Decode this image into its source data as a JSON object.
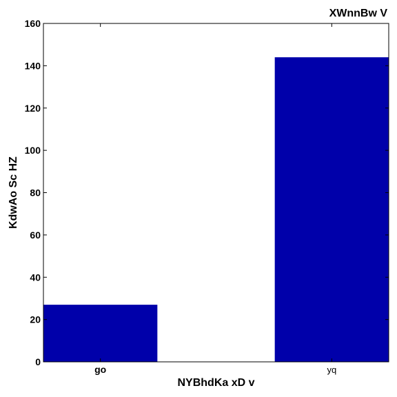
{
  "chart_data": {
    "type": "bar",
    "title": "XWnnBw V",
    "xlabel": "NYBhdKa xD v",
    "ylabel": "KdwAo Sc HZ",
    "categories": [
      "go",
      "yq"
    ],
    "values": [
      27,
      144
    ],
    "ylim": [
      0,
      160
    ],
    "yticks": [
      0,
      20,
      40,
      60,
      80,
      100,
      120,
      140,
      160
    ],
    "grid": false,
    "legend": "none",
    "category_label_styles": [
      "bold",
      "normal"
    ],
    "bar_color": "#0000aa"
  }
}
